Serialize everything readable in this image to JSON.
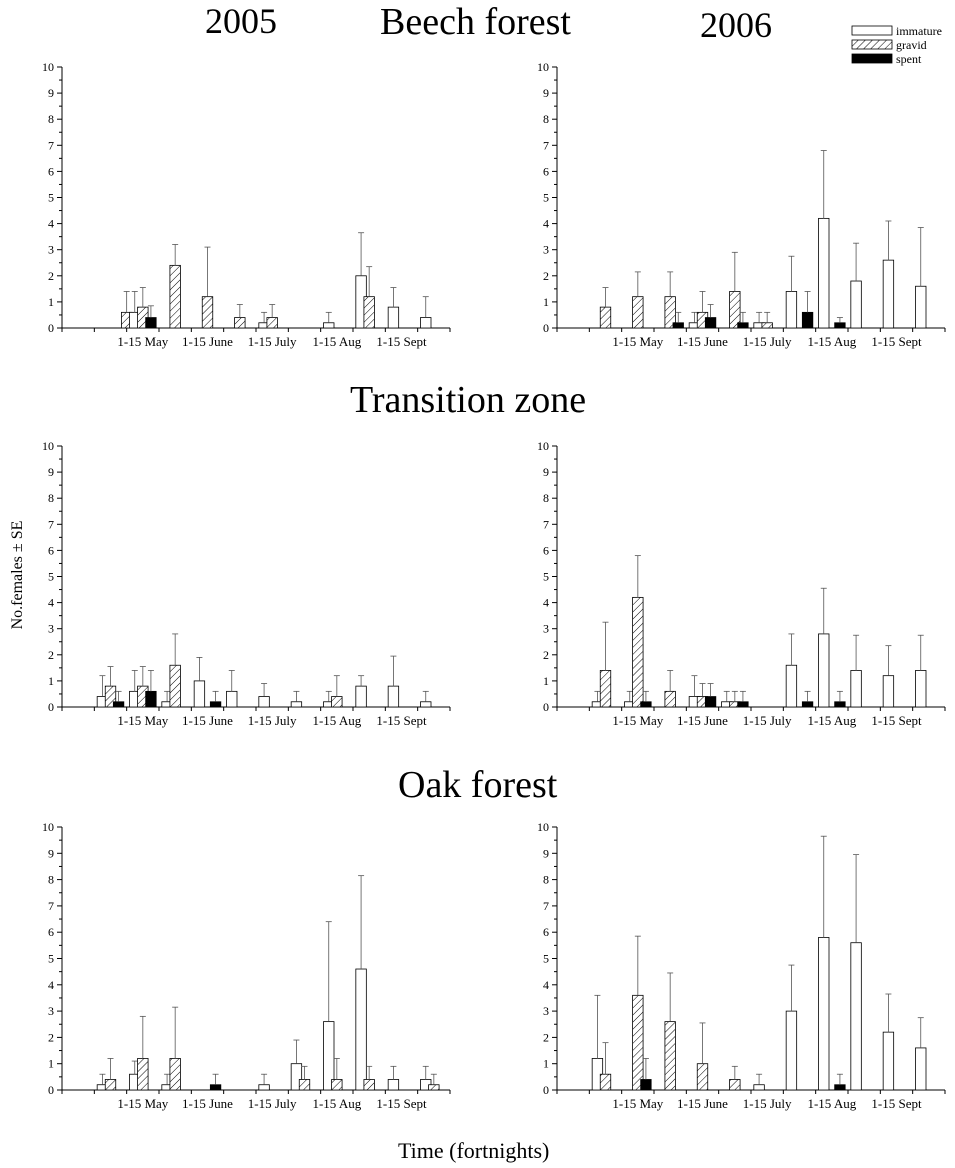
{
  "figure": {
    "year_left": "2005",
    "year_right": "2006",
    "ylabel": "No.females ± SE",
    "xlabel": "Time (fortnights)"
  },
  "legend": {
    "placement": "top-right",
    "items": [
      {
        "key": "immature",
        "label": "immature",
        "fill": "white"
      },
      {
        "key": "gravid",
        "label": "gravid",
        "fill": "hatched"
      },
      {
        "key": "spent",
        "label": "spent",
        "fill": "black"
      }
    ]
  },
  "colors": {
    "axis": "#000000",
    "bar_stroke": "#000000",
    "spent": "#000000",
    "background": "#ffffff"
  },
  "chart_data": [
    {
      "type": "bar",
      "habitat": "Beech forest",
      "year": "2005",
      "ylim": [
        0,
        10
      ],
      "yticks": [
        0,
        1,
        2,
        3,
        4,
        5,
        6,
        7,
        8,
        9,
        10
      ],
      "xlim": [
        0,
        11
      ],
      "xtick_labels": [
        "1-15 May",
        "1-15 June",
        "1-15 July",
        "1-15 Aug",
        "1-15 Sept"
      ],
      "xticks": [
        2,
        4,
        6,
        8,
        10
      ],
      "bars": [
        {
          "x": 1.5,
          "series": "gravid",
          "value": 0.6,
          "se": 0.8
        },
        {
          "x": 1.75,
          "series": "immature",
          "value": 0.6,
          "se": 0.8
        },
        {
          "x": 2.0,
          "series": "gravid",
          "value": 0.8,
          "se": 0.75
        },
        {
          "x": 2.25,
          "series": "spent",
          "value": 0.4,
          "se": 0.45
        },
        {
          "x": 3.0,
          "series": "gravid",
          "value": 2.4,
          "se": 0.8
        },
        {
          "x": 4.0,
          "series": "gravid",
          "value": 1.2,
          "se": 1.9
        },
        {
          "x": 5.0,
          "series": "gravid",
          "value": 0.4,
          "se": 0.5
        },
        {
          "x": 5.75,
          "series": "immature",
          "value": 0.2,
          "se": 0.4
        },
        {
          "x": 6.0,
          "series": "gravid",
          "value": 0.4,
          "se": 0.5
        },
        {
          "x": 7.75,
          "series": "immature",
          "value": 0.2,
          "se": 0.4
        },
        {
          "x": 8.75,
          "series": "immature",
          "value": 2.0,
          "se": 1.65
        },
        {
          "x": 9.0,
          "series": "gravid",
          "value": 1.2,
          "se": 1.15
        },
        {
          "x": 9.75,
          "series": "immature",
          "value": 0.8,
          "se": 0.75
        },
        {
          "x": 10.75,
          "series": "immature",
          "value": 0.4,
          "se": 0.8
        }
      ]
    },
    {
      "type": "bar",
      "habitat": "Beech forest",
      "year": "2006",
      "ylim": [
        0,
        10
      ],
      "yticks": [
        0,
        1,
        2,
        3,
        4,
        5,
        6,
        7,
        8,
        9,
        10
      ],
      "xlim": [
        0,
        11
      ],
      "xtick_labels": [
        "1-15 May",
        "1-15 June",
        "1-15 July",
        "1-15 Aug",
        "1-15 Sept"
      ],
      "xticks": [
        2,
        4,
        6,
        8,
        10
      ],
      "bars": [
        {
          "x": 1.0,
          "series": "gravid",
          "value": 0.8,
          "se": 0.75
        },
        {
          "x": 2.0,
          "series": "gravid",
          "value": 1.2,
          "se": 0.95
        },
        {
          "x": 3.0,
          "series": "gravid",
          "value": 1.2,
          "se": 0.95
        },
        {
          "x": 3.25,
          "series": "spent",
          "value": 0.2,
          "se": 0.4
        },
        {
          "x": 3.75,
          "series": "immature",
          "value": 0.2,
          "se": 0.4
        },
        {
          "x": 4.0,
          "series": "gravid",
          "value": 0.6,
          "se": 0.8
        },
        {
          "x": 4.25,
          "series": "spent",
          "value": 0.4,
          "se": 0.5
        },
        {
          "x": 5.0,
          "series": "gravid",
          "value": 1.4,
          "se": 1.5
        },
        {
          "x": 5.25,
          "series": "spent",
          "value": 0.2,
          "se": 0.4
        },
        {
          "x": 5.75,
          "series": "immature",
          "value": 0.2,
          "se": 0.4
        },
        {
          "x": 6.0,
          "series": "gravid",
          "value": 0.2,
          "se": 0.4
        },
        {
          "x": 6.75,
          "series": "immature",
          "value": 1.4,
          "se": 1.35
        },
        {
          "x": 7.25,
          "series": "spent",
          "value": 0.6,
          "se": 0.8
        },
        {
          "x": 7.75,
          "series": "immature",
          "value": 4.2,
          "se": 2.6
        },
        {
          "x": 8.25,
          "series": "spent",
          "value": 0.2,
          "se": 0.2
        },
        {
          "x": 8.75,
          "series": "immature",
          "value": 1.8,
          "se": 1.45
        },
        {
          "x": 9.75,
          "series": "immature",
          "value": 2.6,
          "se": 1.5
        },
        {
          "x": 10.75,
          "series": "immature",
          "value": 1.6,
          "se": 2.25
        }
      ]
    },
    {
      "type": "bar",
      "habitat": "Transition zone",
      "year": "2005",
      "ylim": [
        0,
        10
      ],
      "yticks": [
        0,
        1,
        2,
        3,
        4,
        5,
        6,
        7,
        8,
        9,
        10
      ],
      "xlim": [
        0,
        11
      ],
      "xtick_labels": [
        "1-15 May",
        "1-15 June",
        "1-15 July",
        "1-15 Aug",
        "1-15 Sept"
      ],
      "xticks": [
        2,
        4,
        6,
        8,
        10
      ],
      "bars": [
        {
          "x": 0.75,
          "series": "immature",
          "value": 0.4,
          "se": 0.8
        },
        {
          "x": 1.0,
          "series": "gravid",
          "value": 0.8,
          "se": 0.75
        },
        {
          "x": 1.25,
          "series": "spent",
          "value": 0.2,
          "se": 0.4
        },
        {
          "x": 1.75,
          "series": "immature",
          "value": 0.6,
          "se": 0.8
        },
        {
          "x": 2.0,
          "series": "gravid",
          "value": 0.8,
          "se": 0.75
        },
        {
          "x": 2.25,
          "series": "spent",
          "value": 0.6,
          "se": 0.8
        },
        {
          "x": 2.75,
          "series": "immature",
          "value": 0.2,
          "se": 0.4
        },
        {
          "x": 3.0,
          "series": "gravid",
          "value": 1.6,
          "se": 1.2
        },
        {
          "x": 3.75,
          "series": "immature",
          "value": 1.0,
          "se": 0.9
        },
        {
          "x": 4.25,
          "series": "spent",
          "value": 0.2,
          "se": 0.4
        },
        {
          "x": 4.75,
          "series": "immature",
          "value": 0.6,
          "se": 0.8
        },
        {
          "x": 5.75,
          "series": "immature",
          "value": 0.4,
          "se": 0.5
        },
        {
          "x": 6.75,
          "series": "immature",
          "value": 0.2,
          "se": 0.4
        },
        {
          "x": 7.75,
          "series": "immature",
          "value": 0.2,
          "se": 0.4
        },
        {
          "x": 8.0,
          "series": "gravid",
          "value": 0.4,
          "se": 0.8
        },
        {
          "x": 8.75,
          "series": "immature",
          "value": 0.8,
          "se": 0.4
        },
        {
          "x": 9.75,
          "series": "immature",
          "value": 0.8,
          "se": 1.15
        },
        {
          "x": 10.75,
          "series": "immature",
          "value": 0.2,
          "se": 0.4
        }
      ]
    },
    {
      "type": "bar",
      "habitat": "Transition zone",
      "year": "2006",
      "ylim": [
        0,
        10
      ],
      "yticks": [
        0,
        1,
        2,
        3,
        4,
        5,
        6,
        7,
        8,
        9,
        10
      ],
      "xlim": [
        0,
        11
      ],
      "xtick_labels": [
        "1-15 May",
        "1-15 June",
        "1-15 July",
        "1-15 Aug",
        "1-15 Sept"
      ],
      "xticks": [
        2,
        4,
        6,
        8,
        10
      ],
      "bars": [
        {
          "x": 0.75,
          "series": "immature",
          "value": 0.2,
          "se": 0.4
        },
        {
          "x": 1.0,
          "series": "gravid",
          "value": 1.4,
          "se": 1.85
        },
        {
          "x": 1.75,
          "series": "immature",
          "value": 0.2,
          "se": 0.4
        },
        {
          "x": 2.0,
          "series": "gravid",
          "value": 4.2,
          "se": 1.6
        },
        {
          "x": 2.25,
          "series": "spent",
          "value": 0.2,
          "se": 0.4
        },
        {
          "x": 3.0,
          "series": "gravid",
          "value": 0.6,
          "se": 0.8
        },
        {
          "x": 3.75,
          "series": "immature",
          "value": 0.4,
          "se": 0.8
        },
        {
          "x": 4.0,
          "series": "gravid",
          "value": 0.4,
          "se": 0.5
        },
        {
          "x": 4.25,
          "series": "spent",
          "value": 0.4,
          "se": 0.5
        },
        {
          "x": 4.75,
          "series": "immature",
          "value": 0.2,
          "se": 0.4
        },
        {
          "x": 5.0,
          "series": "gravid",
          "value": 0.2,
          "se": 0.4
        },
        {
          "x": 5.25,
          "series": "spent",
          "value": 0.2,
          "se": 0.4
        },
        {
          "x": 6.75,
          "series": "immature",
          "value": 1.6,
          "se": 1.2
        },
        {
          "x": 7.25,
          "series": "spent",
          "value": 0.2,
          "se": 0.4
        },
        {
          "x": 7.75,
          "series": "immature",
          "value": 2.8,
          "se": 1.75
        },
        {
          "x": 8.25,
          "series": "spent",
          "value": 0.2,
          "se": 0.4
        },
        {
          "x": 8.75,
          "series": "immature",
          "value": 1.4,
          "se": 1.35
        },
        {
          "x": 9.75,
          "series": "immature",
          "value": 1.2,
          "se": 1.15
        },
        {
          "x": 10.75,
          "series": "immature",
          "value": 1.4,
          "se": 1.35
        }
      ]
    },
    {
      "type": "bar",
      "habitat": "Oak forest",
      "year": "2005",
      "ylim": [
        0,
        10
      ],
      "yticks": [
        0,
        1,
        2,
        3,
        4,
        5,
        6,
        7,
        8,
        9,
        10
      ],
      "xlim": [
        0,
        11
      ],
      "xtick_labels": [
        "1-15 May",
        "1-15 June",
        "1-15 July",
        "1-15 Aug",
        "1-15 Sept"
      ],
      "xticks": [
        2,
        4,
        6,
        8,
        10
      ],
      "bars": [
        {
          "x": 0.75,
          "series": "immature",
          "value": 0.2,
          "se": 0.4
        },
        {
          "x": 1.0,
          "series": "gravid",
          "value": 0.4,
          "se": 0.8
        },
        {
          "x": 1.75,
          "series": "immature",
          "value": 0.6,
          "se": 0.5
        },
        {
          "x": 2.0,
          "series": "gravid",
          "value": 1.2,
          "se": 1.6
        },
        {
          "x": 2.75,
          "series": "immature",
          "value": 0.2,
          "se": 0.4
        },
        {
          "x": 3.0,
          "series": "gravid",
          "value": 1.2,
          "se": 1.95
        },
        {
          "x": 4.25,
          "series": "spent",
          "value": 0.2,
          "se": 0.4
        },
        {
          "x": 5.75,
          "series": "immature",
          "value": 0.2,
          "se": 0.4
        },
        {
          "x": 6.75,
          "series": "immature",
          "value": 1.0,
          "se": 0.9
        },
        {
          "x": 7.0,
          "series": "gravid",
          "value": 0.4,
          "se": 0.5
        },
        {
          "x": 7.75,
          "series": "immature",
          "value": 2.6,
          "se": 3.8
        },
        {
          "x": 8.0,
          "series": "gravid",
          "value": 0.4,
          "se": 0.8
        },
        {
          "x": 8.75,
          "series": "immature",
          "value": 4.6,
          "se": 3.55
        },
        {
          "x": 9.0,
          "series": "gravid",
          "value": 0.4,
          "se": 0.5
        },
        {
          "x": 9.75,
          "series": "immature",
          "value": 0.4,
          "se": 0.5
        },
        {
          "x": 10.75,
          "series": "immature",
          "value": 0.4,
          "se": 0.5
        },
        {
          "x": 11.0,
          "series": "gravid",
          "value": 0.2,
          "se": 0.4
        }
      ]
    },
    {
      "type": "bar",
      "habitat": "Oak forest",
      "year": "2006",
      "ylim": [
        0,
        10
      ],
      "yticks": [
        0,
        1,
        2,
        3,
        4,
        5,
        6,
        7,
        8,
        9,
        10
      ],
      "xlim": [
        0,
        11
      ],
      "xtick_labels": [
        "1-15 May",
        "1-15 June",
        "1-15 July",
        "1-15 Aug",
        "1-15 Sept"
      ],
      "xticks": [
        2,
        4,
        6,
        8,
        10
      ],
      "bars": [
        {
          "x": 0.75,
          "series": "immature",
          "value": 1.2,
          "se": 2.4
        },
        {
          "x": 1.0,
          "series": "gravid",
          "value": 0.6,
          "se": 1.2
        },
        {
          "x": 2.0,
          "series": "gravid",
          "value": 3.6,
          "se": 2.25
        },
        {
          "x": 2.25,
          "series": "spent",
          "value": 0.4,
          "se": 0.8
        },
        {
          "x": 3.0,
          "series": "gravid",
          "value": 2.6,
          "se": 1.85
        },
        {
          "x": 4.0,
          "series": "gravid",
          "value": 1.0,
          "se": 1.55
        },
        {
          "x": 5.0,
          "series": "gravid",
          "value": 0.4,
          "se": 0.5
        },
        {
          "x": 5.75,
          "series": "immature",
          "value": 0.2,
          "se": 0.4
        },
        {
          "x": 6.75,
          "series": "immature",
          "value": 3.0,
          "se": 1.75
        },
        {
          "x": 7.75,
          "series": "immature",
          "value": 5.8,
          "se": 3.85
        },
        {
          "x": 8.25,
          "series": "spent",
          "value": 0.2,
          "se": 0.4
        },
        {
          "x": 8.75,
          "series": "immature",
          "value": 5.6,
          "se": 3.35
        },
        {
          "x": 9.75,
          "series": "immature",
          "value": 2.2,
          "se": 1.45
        },
        {
          "x": 10.75,
          "series": "immature",
          "value": 1.6,
          "se": 1.15
        }
      ]
    }
  ]
}
